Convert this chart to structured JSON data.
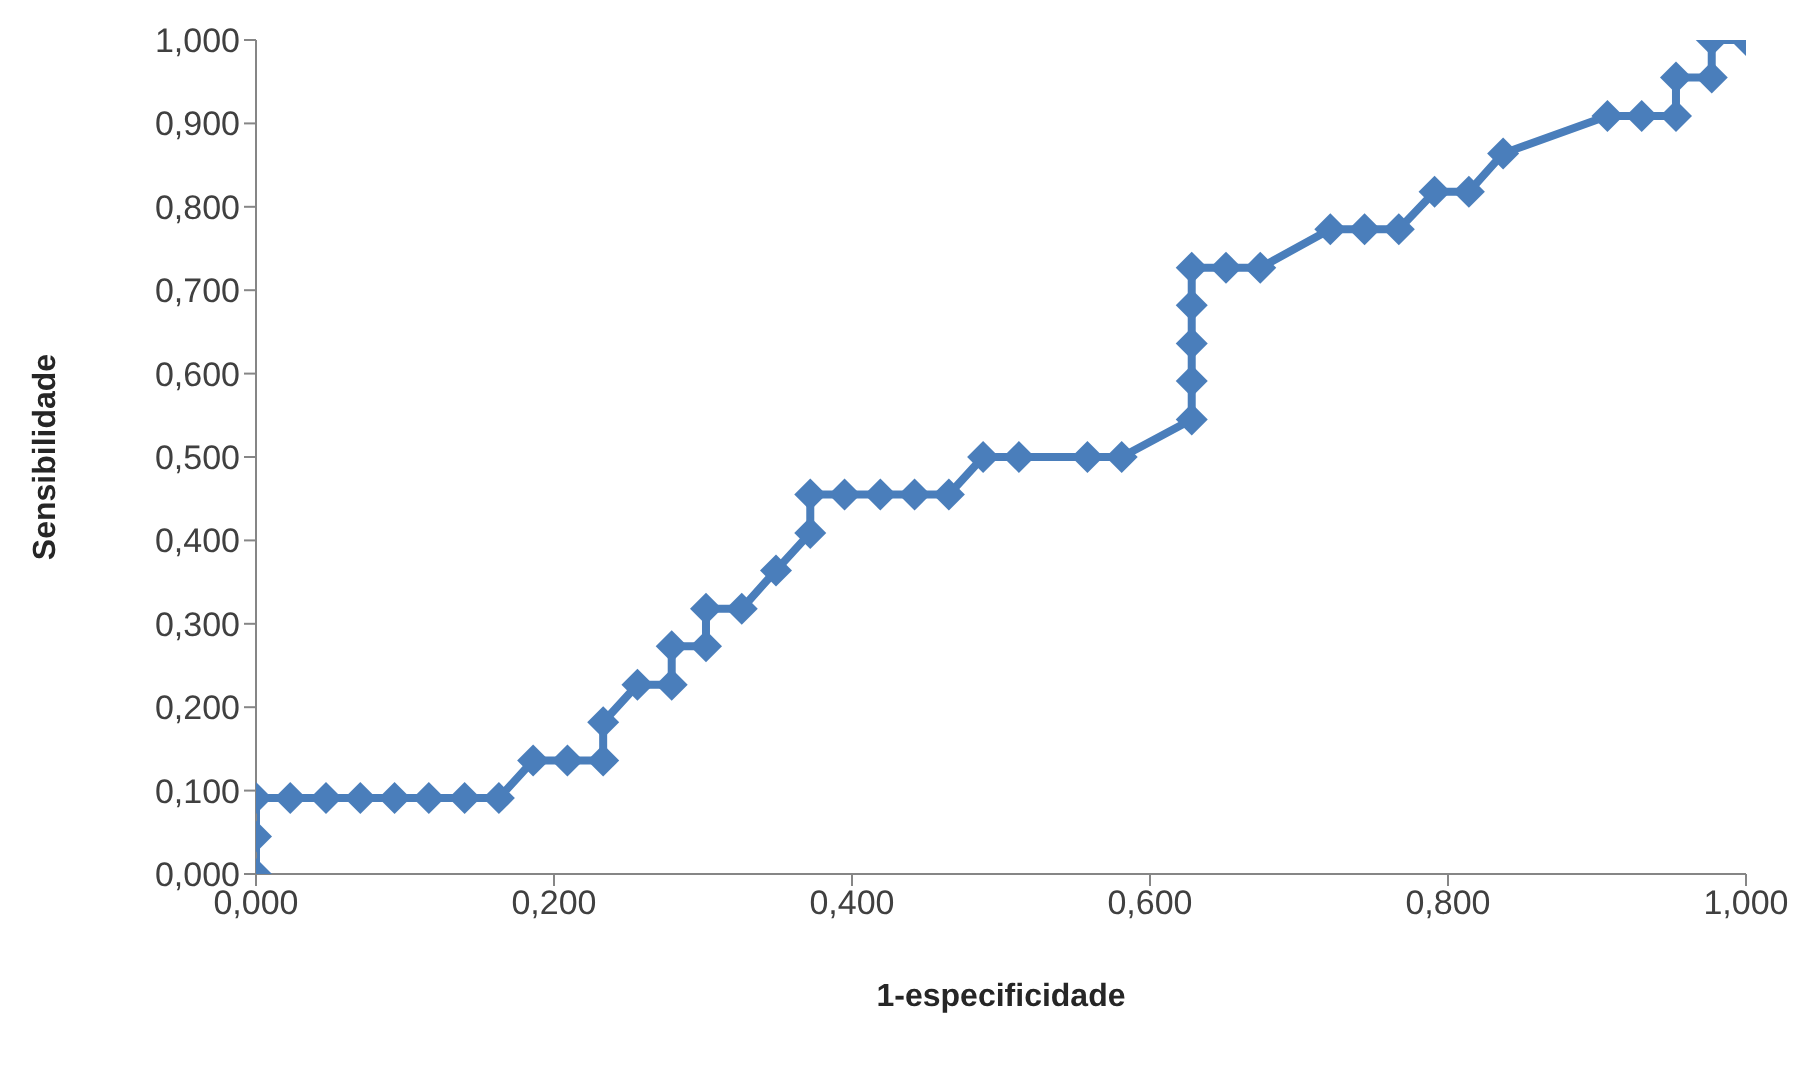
{
  "chart_data": {
    "type": "line",
    "xlabel": "1-especificidade",
    "ylabel": "Sensibilidade",
    "marker": "diamond",
    "line_style": "solid",
    "grid": false,
    "legend": false,
    "xlim": [
      0,
      1
    ],
    "ylim": [
      0,
      1
    ],
    "xticks": [
      {
        "value": 0,
        "label": "0,000"
      },
      {
        "value": 0.2,
        "label": "0,200"
      },
      {
        "value": 0.4,
        "label": "0,400"
      },
      {
        "value": 0.6,
        "label": "0,600"
      },
      {
        "value": 0.8,
        "label": "0,800"
      },
      {
        "value": 1,
        "label": "1,000"
      }
    ],
    "yticks": [
      {
        "value": 0,
        "label": "0,000"
      },
      {
        "value": 0.1,
        "label": "0,100"
      },
      {
        "value": 0.2,
        "label": "0,200"
      },
      {
        "value": 0.3,
        "label": "0,300"
      },
      {
        "value": 0.4,
        "label": "0,400"
      },
      {
        "value": 0.5,
        "label": "0,500"
      },
      {
        "value": 0.6,
        "label": "0,600"
      },
      {
        "value": 0.7,
        "label": "0,700"
      },
      {
        "value": 0.8,
        "label": "0,800"
      },
      {
        "value": 0.9,
        "label": "0,900"
      },
      {
        "value": 1,
        "label": "1,000"
      }
    ],
    "series": [
      {
        "color": "#4a7ebb",
        "x": [
          0,
          0,
          0,
          0.023,
          0.047,
          0.07,
          0.093,
          0.116,
          0.14,
          0.163,
          0.186,
          0.209,
          0.233,
          0.233,
          0.256,
          0.279,
          0.279,
          0.302,
          0.302,
          0.326,
          0.349,
          0.372,
          0.372,
          0.395,
          0.419,
          0.442,
          0.465,
          0.488,
          0.512,
          0.558,
          0.581,
          0.628,
          0.628,
          0.628,
          0.628,
          0.628,
          0.651,
          0.674,
          0.721,
          0.744,
          0.767,
          0.791,
          0.814,
          0.837,
          0.907,
          0.93,
          0.953,
          0.953,
          0.977,
          0.977,
          1
        ],
        "values": [
          0,
          0.045,
          0.091,
          0.091,
          0.091,
          0.091,
          0.091,
          0.091,
          0.091,
          0.091,
          0.136,
          0.136,
          0.136,
          0.182,
          0.227,
          0.227,
          0.273,
          0.273,
          0.318,
          0.318,
          0.364,
          0.409,
          0.455,
          0.455,
          0.455,
          0.455,
          0.455,
          0.5,
          0.5,
          0.5,
          0.5,
          0.545,
          0.591,
          0.636,
          0.682,
          0.727,
          0.727,
          0.727,
          0.773,
          0.773,
          0.773,
          0.818,
          0.818,
          0.864,
          0.909,
          0.909,
          0.909,
          0.955,
          0.955,
          1,
          1
        ]
      }
    ]
  }
}
